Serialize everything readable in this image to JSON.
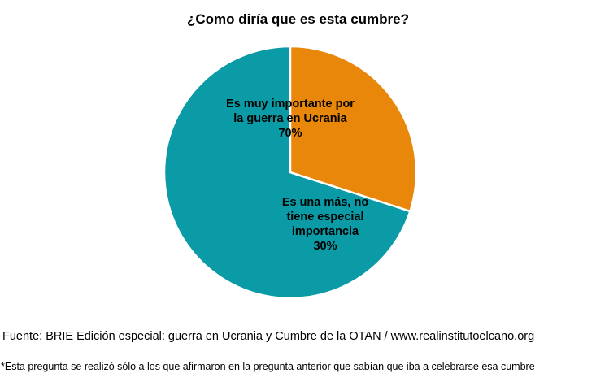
{
  "chart_data": {
    "type": "pie",
    "title": "¿Como diría que es esta cumbre?",
    "slices": [
      {
        "label_lines": [
          "Es muy importante por",
          "la guerra en Ucrania"
        ],
        "value": 70,
        "value_label": "70%",
        "color": "#0A9BA6"
      },
      {
        "label_lines": [
          "Es una más, no",
          "tiene especial",
          "importancia"
        ],
        "value": 30,
        "value_label": "30%",
        "color": "#E8870A"
      }
    ],
    "start_angle_deg": 90,
    "direction": "counterclockwise",
    "legend": "none"
  },
  "source": "Fuente: BRIE Edición especial: guerra en Ucrania y Cumbre de la OTAN / www.realinstitutoelcano.org",
  "footnote": "*Esta pregunta se realizó sólo a los que afirmaron en la pregunta anterior que sabían que iba a celebrarse esa cumbre"
}
